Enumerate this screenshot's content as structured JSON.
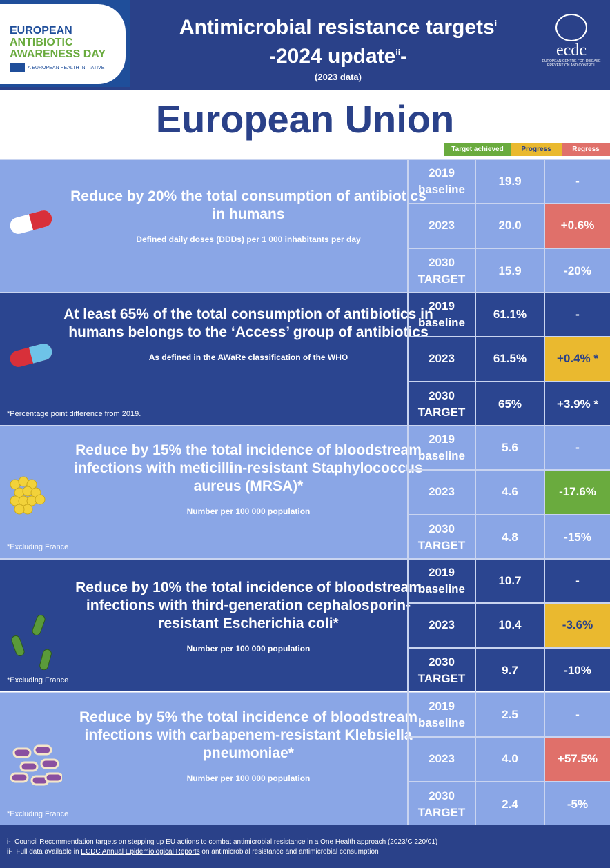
{
  "header": {
    "logo": {
      "line1": "EUROPEAN",
      "line2": "ANTIBIOTIC",
      "line3": "AWARENESS DAY",
      "initiative": "A EUROPEAN HEALTH INITIATIVE"
    },
    "title1": "Antimicrobial resistance targets",
    "sup1": "i",
    "title2": "-2024 update",
    "sup2": "ii",
    "title2_end": "-",
    "subtitle": "(2023 data)",
    "ecdc": {
      "name": "ecdc",
      "full": "EUROPEAN CENTRE FOR DISEASE PREVENTION AND CONTROL"
    }
  },
  "region": "European Union",
  "legend": {
    "achieved": "Target achieved",
    "progress": "Progress",
    "regress": "Regress"
  },
  "colors": {
    "achieved": "#6aab3e",
    "progress": "#eab92f",
    "regress": "#e0706a",
    "light": "#8aa6e6",
    "dark": "#2b4590"
  },
  "sections": [
    {
      "headline": "Reduce by 20% the total consumption of antibiotics in humans",
      "sub": "Defined daily doses (DDDs) per 1 000 inhabitants per day",
      "note": "",
      "icon": "pill-red-icon",
      "rows": [
        {
          "year": "2019 baseline",
          "value": "19.9",
          "change": "-",
          "status": ""
        },
        {
          "year": "2023",
          "value": "20.0",
          "change": "+0.6%",
          "status": "regress"
        },
        {
          "year": "2030 TARGET",
          "value": "15.9",
          "change": "-20%",
          "status": ""
        }
      ]
    },
    {
      "headline": "At least 65% of the total consumption of antibiotics in humans belongs to the ‘Access’ group of antibiotics",
      "sub": "As defined in the AWaRe classification of the WHO",
      "note": "*Percentage point difference from 2019.",
      "icon": "pill-blue-icon",
      "rows": [
        {
          "year": "2019 baseline",
          "value": "61.1%",
          "change": "-",
          "status": ""
        },
        {
          "year": "2023",
          "value": "61.5%",
          "change": "+0.4% *",
          "status": "progress"
        },
        {
          "year": "2030 TARGET",
          "value": "65%",
          "change": "+3.9% *",
          "status": ""
        }
      ]
    },
    {
      "headline": "Reduce by 15% the total incidence of bloodstream infections with meticillin-resistant Staphylococcus aureus (MRSA)*",
      "sub": "Number per 100 000 population",
      "note": "*Excluding France",
      "icon": "staphylococcus-icon",
      "rows": [
        {
          "year": "2019 baseline",
          "value": "5.6",
          "change": "-",
          "status": ""
        },
        {
          "year": "2023",
          "value": "4.6",
          "change": "-17.6%",
          "status": "achieved"
        },
        {
          "year": "2030 TARGET",
          "value": "4.8",
          "change": "-15%",
          "status": ""
        }
      ]
    },
    {
      "headline": "Reduce by 10% the total incidence of bloodstream infections with third-generation cephalosporin-resistant Escherichia coli*",
      "sub": "Number per 100 000 population",
      "note": "*Excluding France",
      "icon": "ecoli-icon",
      "rows": [
        {
          "year": "2019 baseline",
          "value": "10.7",
          "change": "-",
          "status": ""
        },
        {
          "year": "2023",
          "value": "10.4",
          "change": "-3.6%",
          "status": "progress"
        },
        {
          "year": "2030 TARGET",
          "value": "9.7",
          "change": "-10%",
          "status": ""
        }
      ]
    },
    {
      "headline": "Reduce by 5% the total incidence of bloodstream infections with carbapenem-resistant Klebsiella pneumoniae*",
      "sub": "Number per 100 000 population",
      "note": "*Excluding France",
      "icon": "klebsiella-icon",
      "rows": [
        {
          "year": "2019 baseline",
          "value": "2.5",
          "change": "-",
          "status": ""
        },
        {
          "year": "2023",
          "value": "4.0",
          "change": "+57.5%",
          "status": "regress"
        },
        {
          "year": "2030 TARGET",
          "value": "2.4",
          "change": "-5%",
          "status": ""
        }
      ]
    }
  ],
  "footer": {
    "m1": "i-",
    "l1": "Council Recommendation targets on stepping up EU actions to combat antimicrobial resistance in a One Health approach (2023/C 220/01)",
    "m2": "ii-",
    "pre2": "Full data available in ",
    "l2": "ECDC Annual Epidemiological Reports",
    "post2": " on antimicrobial resistance and antimicrobial consumption"
  }
}
